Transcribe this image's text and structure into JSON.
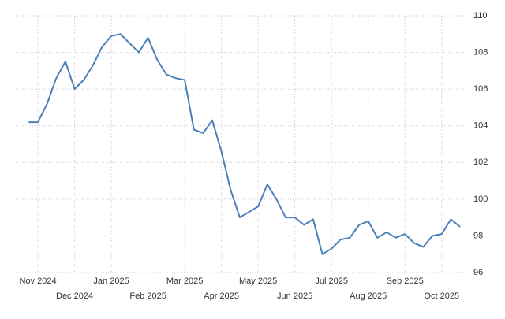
{
  "chart_data": {
    "type": "line",
    "categories": [
      null,
      "Nov 2024",
      null,
      null,
      null,
      "Dec 2024",
      null,
      null,
      null,
      "Jan 2025",
      null,
      null,
      null,
      "Feb 2025",
      null,
      null,
      null,
      "Mar 2025",
      null,
      null,
      null,
      "Apr 2025",
      null,
      null,
      null,
      "May 2025",
      null,
      null,
      null,
      "Jun 2025",
      null,
      null,
      null,
      "Jul 2025",
      null,
      null,
      null,
      "Aug 2025",
      null,
      null,
      null,
      "Sep 2025",
      null,
      null,
      null,
      "Oct 2025",
      null,
      null
    ],
    "values": [
      104.2,
      104.2,
      105.2,
      106.6,
      107.5,
      106.0,
      106.5,
      107.3,
      108.3,
      108.9,
      109.0,
      108.5,
      108.0,
      108.8,
      107.6,
      106.8,
      106.6,
      106.5,
      103.8,
      103.6,
      104.3,
      102.6,
      100.5,
      99.0,
      99.3,
      99.6,
      100.8,
      100.0,
      99.0,
      99.0,
      98.6,
      98.9,
      97.0,
      97.3,
      97.8,
      97.9,
      98.6,
      98.8,
      97.9,
      98.2,
      97.9,
      98.1,
      97.6,
      97.4,
      98.0,
      98.1,
      98.9,
      98.5
    ],
    "color": "#4a80b8",
    "ylim": [
      96,
      110
    ],
    "yticks": [
      96,
      98,
      100,
      102,
      104,
      106,
      108,
      110
    ],
    "grid": true
  }
}
